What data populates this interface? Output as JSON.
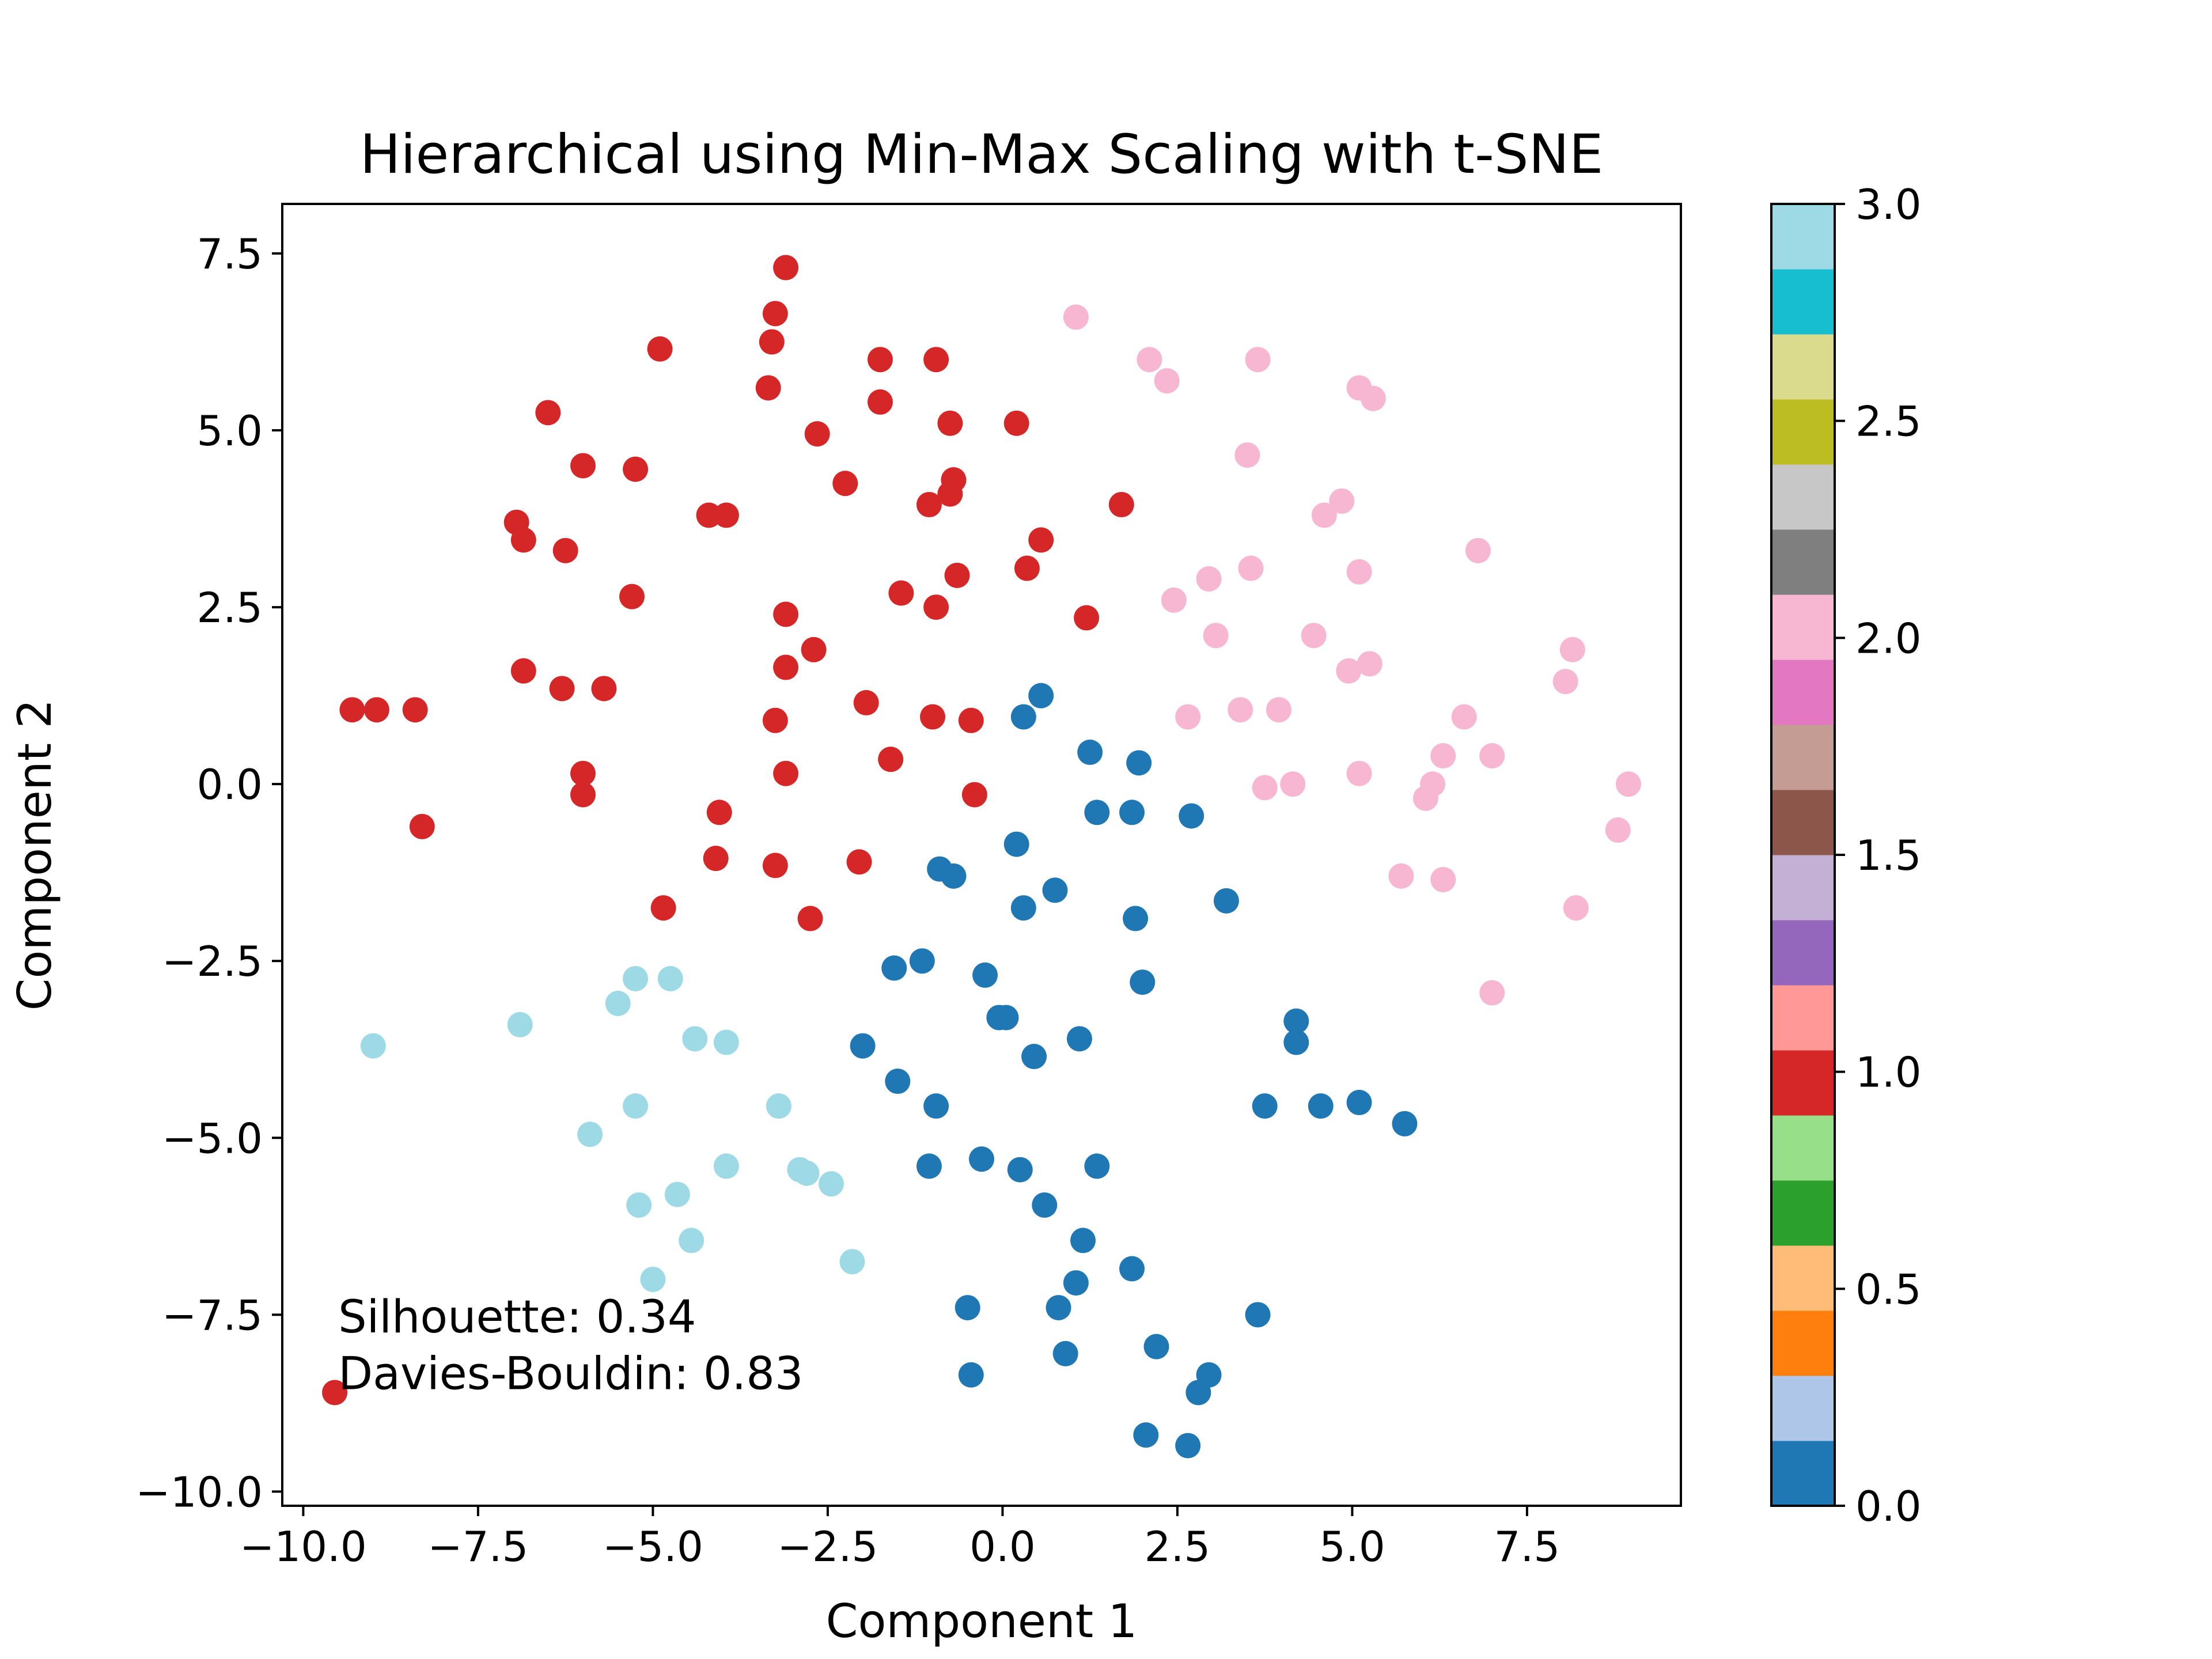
{
  "chart_data": {
    "type": "scatter",
    "title": "Hierarchical using Min-Max Scaling with t-SNE",
    "xlabel": "Component 1",
    "ylabel": "Component 2",
    "xlim": [
      -10.3,
      9.7
    ],
    "ylim": [
      -10.2,
      8.2
    ],
    "x_ticks": [
      -10.0,
      -7.5,
      -5.0,
      -2.5,
      0.0,
      2.5,
      5.0,
      7.5
    ],
    "x_tick_labels": [
      "−10.0",
      "−7.5",
      "−5.0",
      "−2.5",
      "0.0",
      "2.5",
      "5.0",
      "7.5"
    ],
    "y_ticks": [
      -10.0,
      -7.5,
      -5.0,
      -2.5,
      0.0,
      2.5,
      5.0,
      7.5
    ],
    "y_tick_labels": [
      "−10.0",
      "−7.5",
      "−5.0",
      "−2.5",
      "0.0",
      "2.5",
      "5.0",
      "7.5"
    ],
    "grid": false,
    "colormap": "tab20",
    "colorbar": {
      "range": [
        0.0,
        3.0
      ],
      "ticks": [
        0.0,
        0.5,
        1.0,
        1.5,
        2.0,
        2.5,
        3.0
      ],
      "tick_labels": [
        "0.0",
        "0.5",
        "1.0",
        "1.5",
        "2.0",
        "2.5",
        "3.0"
      ],
      "colors": [
        "#1f77b4",
        "#aec7e8",
        "#ff7f0e",
        "#ffbb78",
        "#2ca02c",
        "#98df8a",
        "#d62728",
        "#ff9896",
        "#9467bd",
        "#c5b0d5",
        "#8c564b",
        "#c49c94",
        "#e377c2",
        "#f7b6d2",
        "#7f7f7f",
        "#c7c7c7",
        "#bcbd22",
        "#dbdb8d",
        "#17becf",
        "#9edae5"
      ]
    },
    "series": [
      {
        "cluster": 0,
        "color": "#1f77b4",
        "points": [
          [
            0.3,
            0.95
          ],
          [
            0.55,
            1.25
          ],
          [
            1.25,
            0.45
          ],
          [
            1.95,
            0.3
          ],
          [
            1.35,
            -0.4
          ],
          [
            1.85,
            -0.4
          ],
          [
            2.7,
            -0.45
          ],
          [
            0.2,
            -0.85
          ],
          [
            -0.9,
            -1.2
          ],
          [
            -0.7,
            -1.3
          ],
          [
            0.3,
            -1.75
          ],
          [
            0.75,
            -1.5
          ],
          [
            1.9,
            -1.9
          ],
          [
            3.2,
            -1.65
          ],
          [
            -1.55,
            -2.6
          ],
          [
            -1.15,
            -2.5
          ],
          [
            -0.25,
            -2.7
          ],
          [
            2.0,
            -2.8
          ],
          [
            -0.05,
            -3.3
          ],
          [
            0.05,
            -3.3
          ],
          [
            1.1,
            -3.6
          ],
          [
            -2.0,
            -3.7
          ],
          [
            0.45,
            -3.85
          ],
          [
            4.2,
            -3.35
          ],
          [
            4.2,
            -3.65
          ],
          [
            -1.5,
            -4.2
          ],
          [
            -0.95,
            -4.55
          ],
          [
            3.75,
            -4.55
          ],
          [
            4.55,
            -4.55
          ],
          [
            5.1,
            -4.5
          ],
          [
            5.75,
            -4.8
          ],
          [
            -1.05,
            -5.4
          ],
          [
            -0.3,
            -5.3
          ],
          [
            0.25,
            -5.45
          ],
          [
            1.35,
            -5.4
          ],
          [
            0.6,
            -5.95
          ],
          [
            1.15,
            -6.45
          ],
          [
            1.85,
            -6.85
          ],
          [
            1.05,
            -7.05
          ],
          [
            -0.5,
            -7.4
          ],
          [
            0.8,
            -7.4
          ],
          [
            3.65,
            -7.5
          ],
          [
            0.9,
            -8.05
          ],
          [
            2.2,
            -7.95
          ],
          [
            -0.45,
            -8.35
          ],
          [
            2.95,
            -8.35
          ],
          [
            2.8,
            -8.6
          ],
          [
            2.05,
            -9.2
          ],
          [
            2.65,
            -9.35
          ]
        ]
      },
      {
        "cluster": 1,
        "color": "#d62728",
        "points": [
          [
            -3.1,
            7.3
          ],
          [
            -3.25,
            6.65
          ],
          [
            -3.3,
            6.25
          ],
          [
            -4.9,
            6.15
          ],
          [
            -1.75,
            6.0
          ],
          [
            -0.95,
            6.0
          ],
          [
            -3.35,
            5.6
          ],
          [
            -1.75,
            5.4
          ],
          [
            -6.5,
            5.25
          ],
          [
            -0.75,
            5.1
          ],
          [
            0.2,
            5.1
          ],
          [
            -2.65,
            4.95
          ],
          [
            -6.0,
            4.5
          ],
          [
            -5.25,
            4.45
          ],
          [
            -2.25,
            4.25
          ],
          [
            -0.7,
            4.3
          ],
          [
            -0.75,
            4.1
          ],
          [
            -1.05,
            3.95
          ],
          [
            1.7,
            3.95
          ],
          [
            -4.2,
            3.8
          ],
          [
            -3.95,
            3.8
          ],
          [
            -6.95,
            3.7
          ],
          [
            -6.85,
            3.45
          ],
          [
            0.55,
            3.45
          ],
          [
            -6.25,
            3.3
          ],
          [
            0.35,
            3.05
          ],
          [
            -0.65,
            2.95
          ],
          [
            -1.45,
            2.7
          ],
          [
            -5.3,
            2.65
          ],
          [
            -0.95,
            2.5
          ],
          [
            -3.1,
            2.4
          ],
          [
            1.2,
            2.35
          ],
          [
            -2.7,
            1.9
          ],
          [
            -3.1,
            1.65
          ],
          [
            -6.85,
            1.6
          ],
          [
            -6.3,
            1.35
          ],
          [
            -5.7,
            1.35
          ],
          [
            -1.95,
            1.15
          ],
          [
            -9.3,
            1.05
          ],
          [
            -8.95,
            1.05
          ],
          [
            -8.4,
            1.05
          ],
          [
            -3.25,
            0.9
          ],
          [
            -1.0,
            0.95
          ],
          [
            -0.45,
            0.9
          ],
          [
            -1.6,
            0.35
          ],
          [
            -6.0,
            0.15
          ],
          [
            -3.1,
            0.15
          ],
          [
            -6.0,
            -0.15
          ],
          [
            -0.4,
            -0.15
          ],
          [
            -8.3,
            -0.6
          ],
          [
            -4.05,
            -0.4
          ],
          [
            -4.1,
            -1.05
          ],
          [
            -3.25,
            -1.15
          ],
          [
            -2.05,
            -1.1
          ],
          [
            -4.85,
            -1.75
          ],
          [
            -2.75,
            -1.9
          ],
          [
            -9.55,
            -8.6
          ]
        ]
      },
      {
        "cluster": 2,
        "color": "#f7b6d2",
        "points": [
          [
            1.05,
            6.6
          ],
          [
            2.1,
            6.0
          ],
          [
            3.65,
            6.0
          ],
          [
            2.35,
            5.7
          ],
          [
            5.1,
            5.6
          ],
          [
            5.3,
            5.45
          ],
          [
            3.5,
            4.65
          ],
          [
            4.85,
            4.0
          ],
          [
            4.6,
            3.8
          ],
          [
            6.8,
            3.3
          ],
          [
            3.55,
            3.05
          ],
          [
            5.1,
            3.0
          ],
          [
            2.95,
            2.9
          ],
          [
            2.45,
            2.6
          ],
          [
            3.05,
            2.1
          ],
          [
            4.45,
            2.1
          ],
          [
            8.15,
            1.9
          ],
          [
            5.25,
            1.7
          ],
          [
            4.95,
            1.6
          ],
          [
            8.05,
            1.45
          ],
          [
            3.4,
            1.05
          ],
          [
            3.95,
            1.05
          ],
          [
            2.65,
            0.95
          ],
          [
            6.6,
            0.95
          ],
          [
            6.3,
            0.4
          ],
          [
            7.0,
            0.4
          ],
          [
            5.1,
            0.15
          ],
          [
            3.75,
            -0.05
          ],
          [
            4.15,
            0.0
          ],
          [
            6.15,
            0.0
          ],
          [
            6.05,
            -0.2
          ],
          [
            8.95,
            0.0
          ],
          [
            8.8,
            -0.65
          ],
          [
            5.7,
            -1.3
          ],
          [
            6.3,
            -1.35
          ],
          [
            8.2,
            -1.75
          ],
          [
            7.0,
            -2.95
          ]
        ]
      },
      {
        "cluster": 3,
        "color": "#9edae5",
        "points": [
          [
            -5.25,
            -2.75
          ],
          [
            -4.75,
            -2.75
          ],
          [
            -5.5,
            -3.1
          ],
          [
            -9.0,
            -3.7
          ],
          [
            -6.9,
            -3.4
          ],
          [
            -4.4,
            -3.6
          ],
          [
            -3.95,
            -3.65
          ],
          [
            -5.25,
            -4.55
          ],
          [
            -3.2,
            -4.55
          ],
          [
            -5.9,
            -4.95
          ],
          [
            -3.95,
            -5.4
          ],
          [
            -2.9,
            -5.45
          ],
          [
            -2.8,
            -5.5
          ],
          [
            -2.45,
            -5.65
          ],
          [
            -4.65,
            -5.8
          ],
          [
            -5.2,
            -5.95
          ],
          [
            -4.45,
            -6.45
          ],
          [
            -2.15,
            -6.75
          ],
          [
            -5.0,
            -7.0
          ]
        ]
      }
    ],
    "annotations": [
      "Silhouette: 0.34",
      "Davies-Bouldin: 0.83"
    ]
  }
}
